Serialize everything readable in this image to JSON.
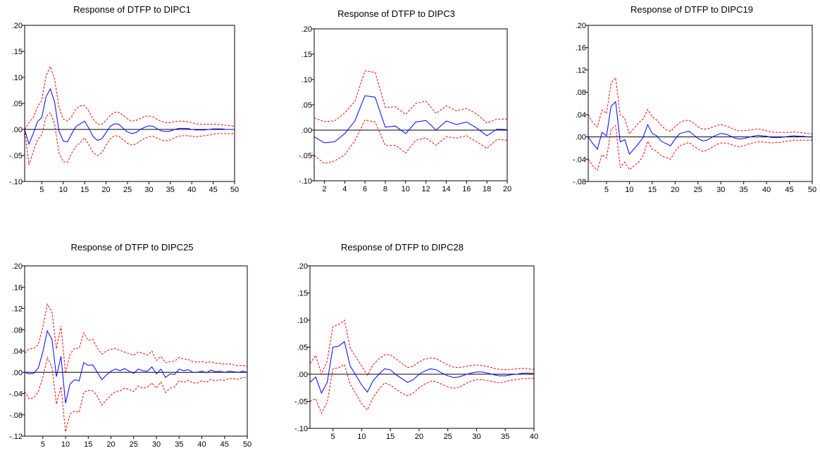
{
  "colors": {
    "response": "#0000ff",
    "band": "#ff0000",
    "zero": "#000000",
    "frame": "#000000"
  },
  "chart_data": [
    {
      "type": "line",
      "title": "Response of DTFP to DIPC1",
      "xlim": [
        1,
        50
      ],
      "ylim": [
        -0.1,
        0.2
      ],
      "yticks": [
        ".20",
        ".15",
        ".10",
        ".05",
        ".00",
        "-.05",
        "-.10"
      ],
      "xticks": [
        "5",
        "10",
        "15",
        "20",
        "25",
        "30",
        "35",
        "40",
        "45",
        "50"
      ],
      "series": [
        {
          "role": "response",
          "values": [
            0.0,
            -0.028,
            -0.008,
            0.015,
            0.023,
            0.063,
            0.078,
            0.052,
            -0.003,
            -0.022,
            -0.024,
            -0.008,
            0.006,
            0.011,
            0.016,
            0.002,
            -0.014,
            -0.021,
            -0.018,
            -0.006,
            0.006,
            0.011,
            0.01,
            0.002,
            -0.005,
            -0.008,
            -0.006,
            0.0,
            0.004,
            0.007,
            0.006,
            0.001,
            -0.003,
            -0.004,
            -0.003,
            0.0,
            0.002,
            0.002,
            0.002,
            0.0,
            -0.001,
            -0.001,
            -0.001,
            0.0,
            0.001,
            0.001,
            0.001,
            0.0,
            0.0,
            0.0
          ]
        },
        {
          "role": "upper",
          "values": [
            0.0,
            0.013,
            0.023,
            0.043,
            0.056,
            0.103,
            0.121,
            0.096,
            0.043,
            0.02,
            0.016,
            0.025,
            0.04,
            0.045,
            0.046,
            0.035,
            0.02,
            0.01,
            0.01,
            0.017,
            0.027,
            0.033,
            0.033,
            0.027,
            0.02,
            0.016,
            0.017,
            0.021,
            0.025,
            0.026,
            0.024,
            0.019,
            0.015,
            0.013,
            0.013,
            0.015,
            0.016,
            0.016,
            0.015,
            0.013,
            0.011,
            0.01,
            0.01,
            0.01,
            0.01,
            0.01,
            0.009,
            0.008,
            0.007,
            0.006
          ]
        },
        {
          "role": "lower",
          "values": [
            0.0,
            -0.068,
            -0.043,
            -0.02,
            -0.01,
            0.025,
            0.032,
            0.01,
            -0.045,
            -0.062,
            -0.063,
            -0.045,
            -0.032,
            -0.025,
            -0.016,
            -0.03,
            -0.045,
            -0.05,
            -0.045,
            -0.03,
            -0.018,
            -0.012,
            -0.013,
            -0.02,
            -0.027,
            -0.03,
            -0.028,
            -0.022,
            -0.017,
            -0.014,
            -0.013,
            -0.017,
            -0.021,
            -0.022,
            -0.02,
            -0.016,
            -0.013,
            -0.012,
            -0.012,
            -0.013,
            -0.014,
            -0.013,
            -0.012,
            -0.011,
            -0.009,
            -0.008,
            -0.008,
            -0.008,
            -0.008,
            -0.008
          ]
        }
      ]
    },
    {
      "type": "line",
      "title": "Response of DTFP to DIPC3",
      "xlim": [
        1,
        20
      ],
      "ylim": [
        -0.1,
        0.2
      ],
      "yticks": [
        ".20",
        ".15",
        ".10",
        ".05",
        ".00",
        "-.05",
        "-.10"
      ],
      "xticks": [
        "2",
        "4",
        "6",
        "8",
        "10",
        "12",
        "14",
        "16",
        "18",
        "20"
      ],
      "series": [
        {
          "role": "response",
          "values": [
            -0.013,
            -0.025,
            -0.023,
            -0.007,
            0.018,
            0.068,
            0.065,
            0.006,
            0.008,
            -0.007,
            0.016,
            0.019,
            0.0,
            0.018,
            0.011,
            0.016,
            0.004,
            -0.011,
            0.002,
            0.001
          ]
        },
        {
          "role": "upper",
          "values": [
            0.024,
            0.017,
            0.018,
            0.034,
            0.057,
            0.117,
            0.114,
            0.045,
            0.046,
            0.031,
            0.053,
            0.057,
            0.033,
            0.048,
            0.038,
            0.043,
            0.032,
            0.014,
            0.022,
            0.022
          ]
        },
        {
          "role": "lower",
          "values": [
            -0.05,
            -0.066,
            -0.061,
            -0.049,
            -0.021,
            0.02,
            0.016,
            -0.03,
            -0.03,
            -0.045,
            -0.02,
            -0.015,
            -0.03,
            -0.013,
            -0.016,
            -0.011,
            -0.023,
            -0.036,
            -0.018,
            -0.02
          ]
        }
      ]
    },
    {
      "type": "line",
      "title": "Response of DTFP to DIPC19",
      "xlim": [
        1,
        50
      ],
      "ylim": [
        -0.08,
        0.2
      ],
      "yticks": [
        ".20",
        ".16",
        ".12",
        ".08",
        ".04",
        ".00",
        "-.04",
        "-.08"
      ],
      "xticks": [
        "5",
        "10",
        "15",
        "20",
        "25",
        "30",
        "35",
        "40",
        "45",
        "50"
      ],
      "series": [
        {
          "role": "response",
          "values": [
            0.0,
            -0.012,
            -0.022,
            0.008,
            0.002,
            0.055,
            0.063,
            -0.009,
            -0.005,
            -0.031,
            -0.022,
            -0.012,
            -0.001,
            0.022,
            0.006,
            0.002,
            -0.008,
            -0.012,
            -0.016,
            -0.004,
            0.006,
            0.008,
            0.01,
            0.004,
            -0.003,
            -0.007,
            -0.006,
            -0.001,
            0.003,
            0.006,
            0.005,
            0.002,
            -0.002,
            -0.004,
            -0.003,
            -0.001,
            0.001,
            0.003,
            0.002,
            0.001,
            -0.001,
            -0.001,
            -0.001,
            0.0,
            0.001,
            0.002,
            0.001,
            0.001,
            0.0,
            0.0
          ]
        },
        {
          "role": "upper",
          "values": [
            0.04,
            0.025,
            0.018,
            0.048,
            0.042,
            0.097,
            0.106,
            0.04,
            0.033,
            0.005,
            0.015,
            0.025,
            0.032,
            0.049,
            0.036,
            0.03,
            0.02,
            0.013,
            0.01,
            0.018,
            0.026,
            0.029,
            0.03,
            0.025,
            0.018,
            0.014,
            0.014,
            0.017,
            0.02,
            0.022,
            0.02,
            0.017,
            0.013,
            0.011,
            0.011,
            0.012,
            0.013,
            0.014,
            0.013,
            0.011,
            0.009,
            0.008,
            0.008,
            0.008,
            0.008,
            0.009,
            0.008,
            0.007,
            0.006,
            0.005
          ]
        },
        {
          "role": "lower",
          "values": [
            -0.04,
            -0.052,
            -0.06,
            -0.032,
            -0.038,
            0.013,
            0.02,
            -0.055,
            -0.045,
            -0.059,
            -0.052,
            -0.046,
            -0.034,
            -0.008,
            -0.022,
            -0.026,
            -0.034,
            -0.037,
            -0.04,
            -0.026,
            -0.016,
            -0.013,
            -0.01,
            -0.016,
            -0.022,
            -0.026,
            -0.024,
            -0.019,
            -0.014,
            -0.011,
            -0.011,
            -0.013,
            -0.016,
            -0.018,
            -0.016,
            -0.013,
            -0.011,
            -0.009,
            -0.009,
            -0.01,
            -0.011,
            -0.01,
            -0.01,
            -0.008,
            -0.007,
            -0.006,
            -0.006,
            -0.006,
            -0.006,
            -0.006
          ]
        }
      ]
    },
    {
      "type": "line",
      "title": "Response of DTFP to DIPC25",
      "xlim": [
        1,
        50
      ],
      "ylim": [
        -0.12,
        0.2
      ],
      "yticks": [
        ".20",
        ".16",
        ".12",
        ".08",
        ".04",
        ".00",
        "-.04",
        "-.08",
        "-.12"
      ],
      "xticks": [
        "5",
        "10",
        "15",
        "20",
        "25",
        "30",
        "35",
        "40",
        "45",
        "50"
      ],
      "series": [
        {
          "role": "response",
          "values": [
            0.0,
            -0.003,
            -0.002,
            0.008,
            0.038,
            0.078,
            0.062,
            -0.008,
            0.03,
            -0.058,
            -0.022,
            -0.014,
            -0.016,
            0.018,
            0.013,
            0.014,
            0.0,
            -0.014,
            -0.005,
            0.002,
            0.006,
            0.003,
            0.007,
            0.002,
            -0.002,
            0.006,
            0.003,
            0.002,
            0.01,
            -0.003,
            0.006,
            -0.01,
            -0.003,
            -0.004,
            0.006,
            0.003,
            0.005,
            0.0,
            0.0,
            0.002,
            -0.001,
            0.004,
            0.001,
            0.002,
            0.0,
            0.002,
            0.001,
            0.0,
            0.002,
            0.0
          ]
        },
        {
          "role": "upper",
          "values": [
            0.036,
            0.044,
            0.045,
            0.052,
            0.085,
            0.128,
            0.114,
            0.044,
            0.087,
            -0.002,
            0.034,
            0.045,
            0.045,
            0.074,
            0.06,
            0.062,
            0.045,
            0.034,
            0.04,
            0.043,
            0.045,
            0.041,
            0.038,
            0.035,
            0.032,
            0.038,
            0.036,
            0.032,
            0.04,
            0.022,
            0.03,
            0.018,
            0.02,
            0.021,
            0.028,
            0.025,
            0.024,
            0.02,
            0.019,
            0.02,
            0.018,
            0.02,
            0.017,
            0.017,
            0.015,
            0.016,
            0.014,
            0.012,
            0.013,
            0.011
          ]
        },
        {
          "role": "lower",
          "values": [
            -0.036,
            -0.05,
            -0.048,
            -0.036,
            -0.01,
            0.028,
            0.01,
            -0.06,
            -0.027,
            -0.112,
            -0.078,
            -0.073,
            -0.075,
            -0.038,
            -0.034,
            -0.035,
            -0.045,
            -0.062,
            -0.052,
            -0.043,
            -0.036,
            -0.035,
            -0.03,
            -0.032,
            -0.036,
            -0.026,
            -0.03,
            -0.028,
            -0.02,
            -0.03,
            -0.018,
            -0.038,
            -0.03,
            -0.027,
            -0.016,
            -0.019,
            -0.015,
            -0.02,
            -0.02,
            -0.016,
            -0.019,
            -0.013,
            -0.016,
            -0.014,
            -0.015,
            -0.012,
            -0.012,
            -0.013,
            -0.01,
            -0.01
          ]
        }
      ]
    },
    {
      "type": "line",
      "title": "Response of DTFP to DIPC28",
      "xlim": [
        1,
        40
      ],
      "ylim": [
        -0.1,
        0.2
      ],
      "yticks": [
        ".20",
        ".15",
        ".10",
        ".05",
        ".00",
        "-.05",
        "-.10"
      ],
      "xticks": [
        "5",
        "10",
        "15",
        "20",
        "25",
        "30",
        "35",
        "40"
      ],
      "series": [
        {
          "role": "response",
          "values": [
            -0.015,
            -0.005,
            -0.035,
            -0.015,
            0.05,
            0.052,
            0.06,
            0.015,
            -0.002,
            -0.02,
            -0.033,
            -0.012,
            0.0,
            0.01,
            0.008,
            -0.001,
            -0.008,
            -0.015,
            -0.01,
            0.0,
            0.006,
            0.01,
            0.008,
            0.002,
            -0.003,
            -0.006,
            -0.005,
            -0.001,
            0.002,
            0.004,
            0.004,
            0.002,
            -0.001,
            -0.003,
            -0.003,
            -0.001,
            0.0,
            0.002,
            0.002,
            0.001
          ]
        },
        {
          "role": "upper",
          "values": [
            0.02,
            0.035,
            0.0,
            0.025,
            0.088,
            0.092,
            0.1,
            0.048,
            0.032,
            0.015,
            -0.002,
            0.018,
            0.028,
            0.036,
            0.036,
            0.028,
            0.02,
            0.012,
            0.015,
            0.023,
            0.028,
            0.03,
            0.029,
            0.023,
            0.017,
            0.013,
            0.012,
            0.014,
            0.016,
            0.017,
            0.016,
            0.014,
            0.011,
            0.009,
            0.008,
            0.009,
            0.01,
            0.011,
            0.01,
            0.009
          ]
        },
        {
          "role": "lower",
          "values": [
            -0.05,
            -0.045,
            -0.072,
            -0.052,
            0.01,
            0.012,
            0.018,
            -0.018,
            -0.036,
            -0.055,
            -0.066,
            -0.043,
            -0.028,
            -0.016,
            -0.02,
            -0.028,
            -0.035,
            -0.04,
            -0.035,
            -0.025,
            -0.018,
            -0.013,
            -0.014,
            -0.019,
            -0.023,
            -0.026,
            -0.024,
            -0.018,
            -0.013,
            -0.01,
            -0.01,
            -0.012,
            -0.014,
            -0.016,
            -0.014,
            -0.011,
            -0.01,
            -0.008,
            -0.008,
            -0.007
          ]
        }
      ]
    }
  ]
}
